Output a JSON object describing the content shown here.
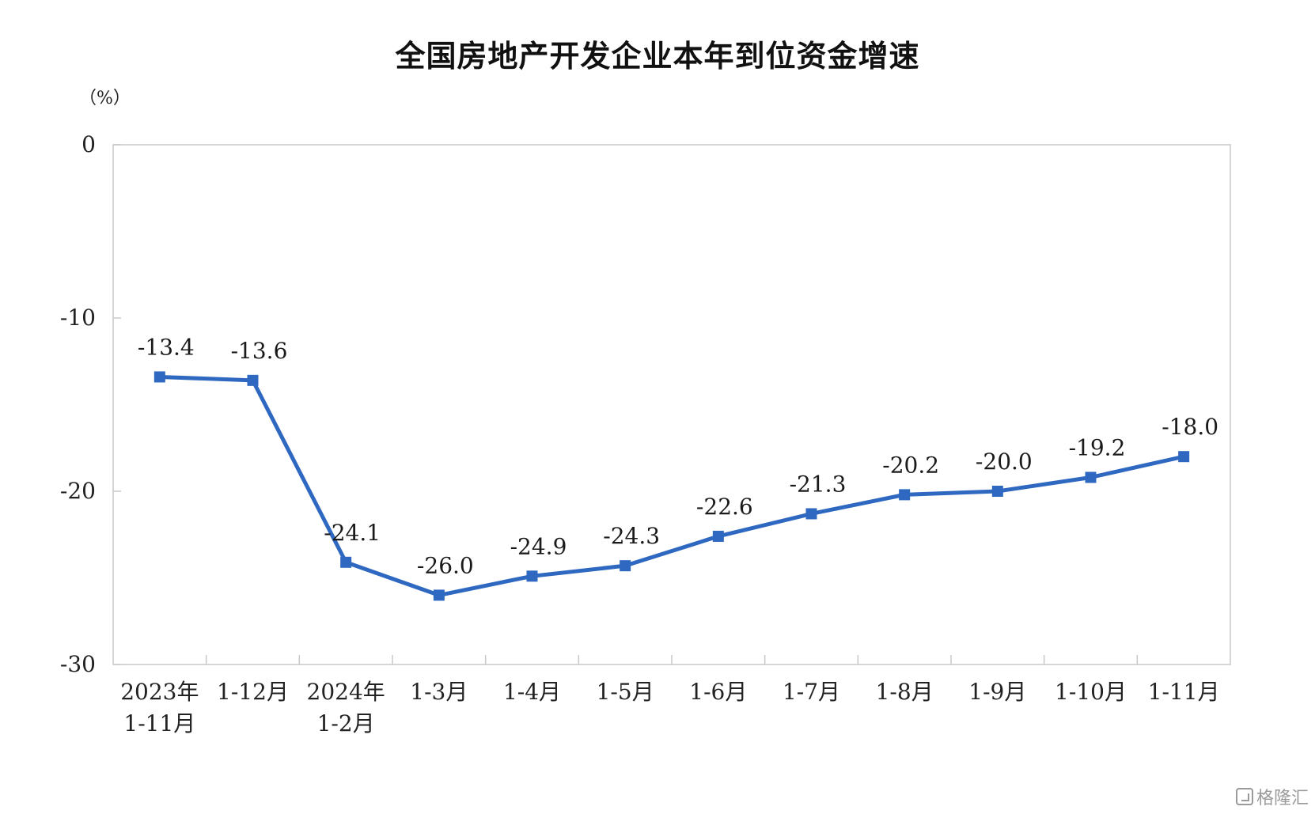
{
  "chart_data": {
    "type": "line",
    "title": "全国房地产开发企业本年到位资金增速",
    "unit_label": "（%）",
    "ylim": [
      -30,
      0
    ],
    "yticks": [
      0,
      -10,
      -20,
      -30
    ],
    "grid": false,
    "series_color": "#2E68C0",
    "categories": [
      [
        "2023年",
        "1-11月"
      ],
      [
        "1-12月"
      ],
      [
        "2024年",
        "1-2月"
      ],
      [
        "1-3月"
      ],
      [
        "1-4月"
      ],
      [
        "1-5月"
      ],
      [
        "1-6月"
      ],
      [
        "1-7月"
      ],
      [
        "1-8月"
      ],
      [
        "1-9月"
      ],
      [
        "1-10月"
      ],
      [
        "1-11月"
      ]
    ],
    "series": [
      {
        "values": [
          -13.4,
          -13.6,
          -24.1,
          -26.0,
          -24.9,
          -24.3,
          -22.6,
          -21.3,
          -20.2,
          -20.0,
          -19.2,
          -18.0
        ],
        "labels": [
          "-13.4",
          "-13.6",
          "-24.1",
          "-26.0",
          "-24.9",
          "-24.3",
          "-22.6",
          "-21.3",
          "-20.2",
          "-20.0",
          "-19.2",
          "-18.0"
        ]
      }
    ]
  },
  "watermark": {
    "text": "格隆汇",
    "icon": "gelonghui-logo-icon"
  }
}
